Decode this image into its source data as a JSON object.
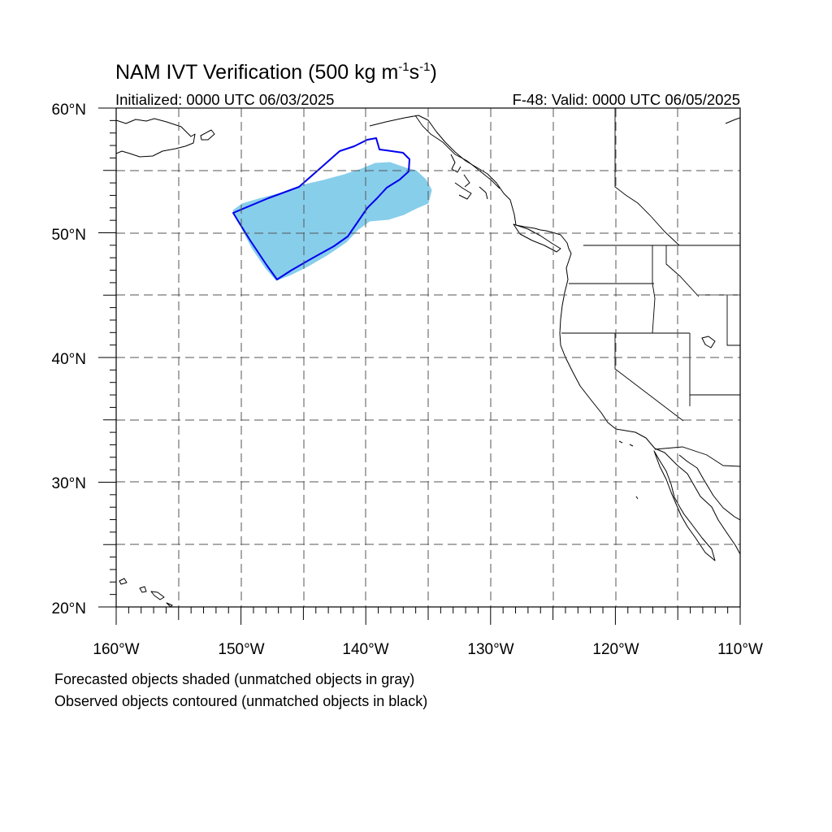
{
  "title": {
    "main": "NAM IVT Verification (500 kg m",
    "exp1": "-1",
    "mid": "s",
    "exp2": "-1",
    "close": ")"
  },
  "initialized": "Initialized: 0000 UTC 06/03/2025",
  "valid": "F-48: Valid: 0000 UTC 06/05/2025",
  "footnotes": [
    "Forecasted objects shaded (unmatched objects in gray)",
    "Observed objects contoured (unmatched objects in black)"
  ],
  "map": {
    "lon_range": [
      -160,
      -110
    ],
    "lat_range": [
      20,
      60
    ],
    "lon_ticks": [
      {
        "value": -160,
        "label": "160°W"
      },
      {
        "value": -150,
        "label": "150°W"
      },
      {
        "value": -140,
        "label": "140°W"
      },
      {
        "value": -130,
        "label": "130°W"
      },
      {
        "value": -120,
        "label": "120°W"
      },
      {
        "value": -110,
        "label": "110°W"
      }
    ],
    "lat_ticks": [
      {
        "value": 60,
        "label": "60°N"
      },
      {
        "value": 50,
        "label": "50°N"
      },
      {
        "value": 40,
        "label": "40°N"
      },
      {
        "value": 30,
        "label": "30°N"
      },
      {
        "value": 20,
        "label": "20°N"
      }
    ],
    "gridlines_every_deg": 5,
    "colors": {
      "forecast_fill": "#87ceeb",
      "observed_contour": "#0000ee",
      "coastline": "#000000",
      "grid": "#555555"
    }
  }
}
